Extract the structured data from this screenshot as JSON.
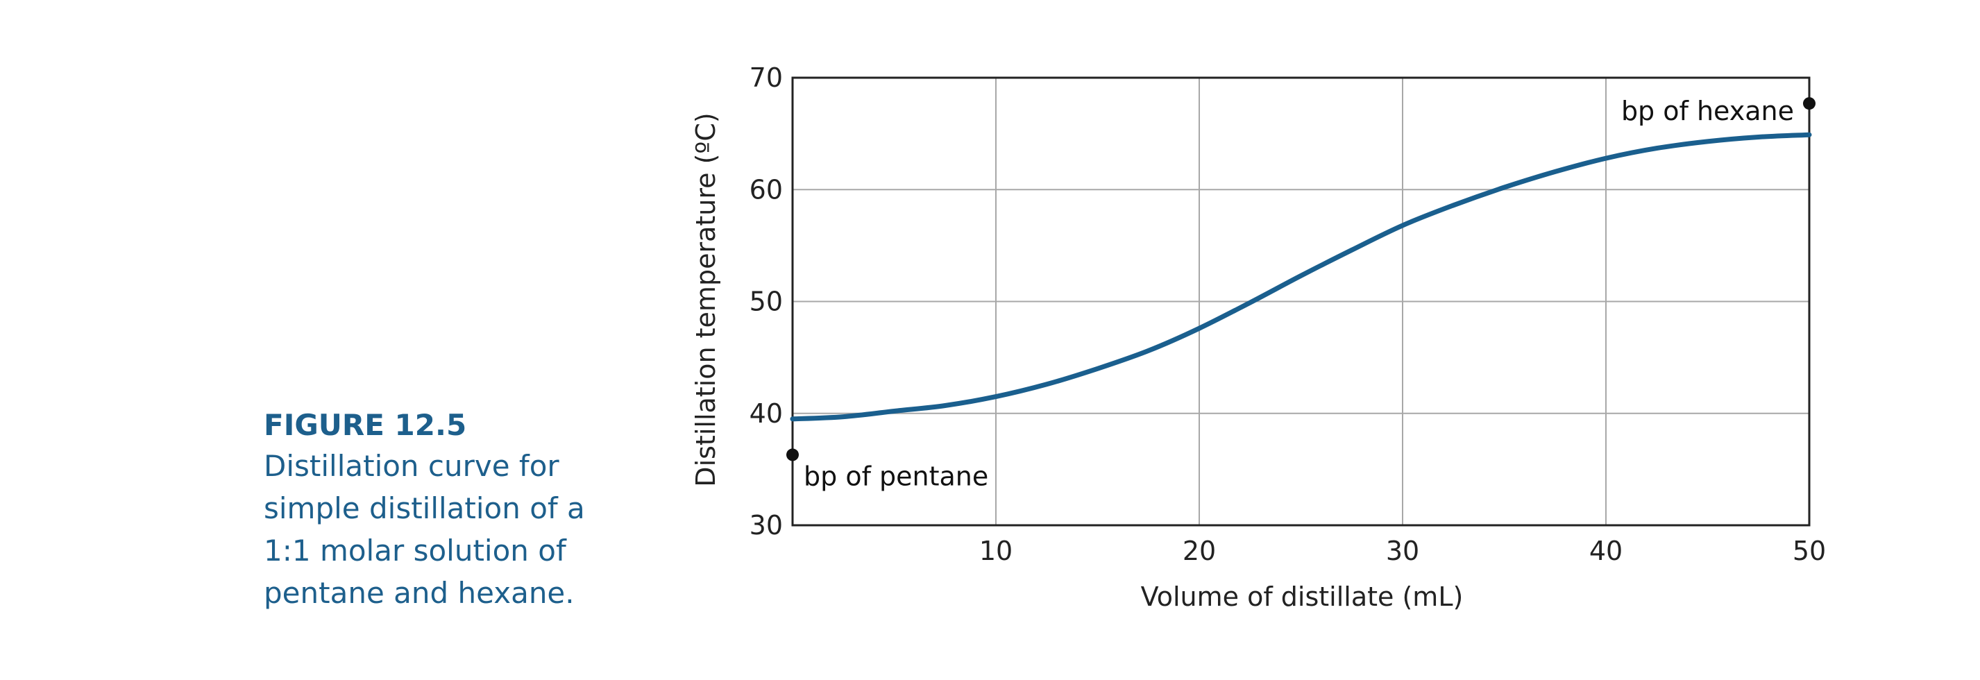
{
  "caption": {
    "title": "FIGURE 12.5",
    "lines": [
      "Distillation curve for",
      "simple distillation of a",
      "1:1 molar solution of",
      "pentane and hexane."
    ]
  },
  "colors": {
    "curve": "#1a5f8e",
    "caption": "#1d5f8c",
    "grid": "#a8a8a8",
    "axis": "#222222"
  },
  "chart_data": {
    "type": "line",
    "title": "",
    "xlabel": "Volume of distillate (mL)",
    "ylabel": "Distillation temperature (ºC)",
    "xlim": [
      0,
      50
    ],
    "ylim": [
      30,
      70
    ],
    "xticks": [
      10,
      20,
      30,
      40,
      50
    ],
    "yticks": [
      30,
      40,
      50,
      60,
      70
    ],
    "grid": true,
    "series": [
      {
        "x": [
          0,
          2.5,
          5,
          7.5,
          10,
          12.5,
          15,
          17.5,
          20,
          22.5,
          25,
          27.5,
          30,
          32.5,
          35,
          37.5,
          40,
          42.5,
          45,
          47.5,
          50
        ],
        "y": [
          39.5,
          39.7,
          40.2,
          40.7,
          41.5,
          42.6,
          44.0,
          45.6,
          47.6,
          49.9,
          52.3,
          54.6,
          56.8,
          58.6,
          60.2,
          61.6,
          62.8,
          63.7,
          64.3,
          64.7,
          64.9
        ]
      }
    ],
    "annotations": [
      {
        "text": "bp of pentane",
        "x": 0,
        "y": 36.3
      },
      {
        "text": "bp of hexane",
        "x": 50,
        "y": 67.7
      }
    ]
  }
}
